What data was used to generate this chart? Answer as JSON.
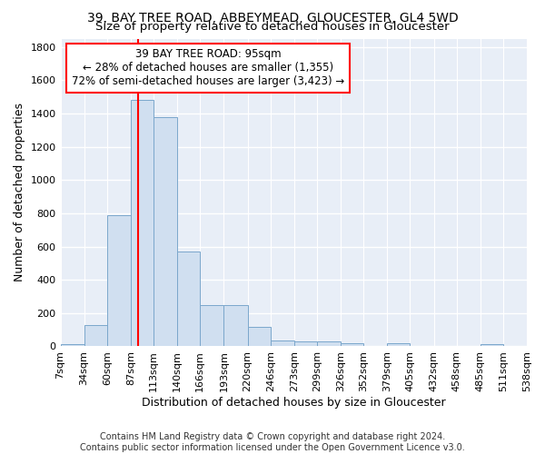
{
  "title": "39, BAY TREE ROAD, ABBEYMEAD, GLOUCESTER, GL4 5WD",
  "subtitle": "Size of property relative to detached houses in Gloucester",
  "xlabel": "Distribution of detached houses by size in Gloucester",
  "ylabel": "Number of detached properties",
  "footnote1": "Contains HM Land Registry data © Crown copyright and database right 2024.",
  "footnote2": "Contains public sector information licensed under the Open Government Licence v3.0.",
  "annotation_line1": "39 BAY TREE ROAD: 95sqm",
  "annotation_line2": "← 28% of detached houses are smaller (1,355)",
  "annotation_line3": "72% of semi-detached houses are larger (3,423) →",
  "bar_color": "#d0dff0",
  "bar_edge_color": "#7ba7cc",
  "red_line_x": 95,
  "bin_edges": [
    7,
    34,
    60,
    87,
    113,
    140,
    166,
    193,
    220,
    246,
    273,
    299,
    326,
    352,
    379,
    405,
    432,
    458,
    485,
    511,
    538
  ],
  "bar_heights": [
    15,
    130,
    790,
    1480,
    1380,
    570,
    250,
    250,
    115,
    35,
    30,
    30,
    20,
    0,
    20,
    0,
    0,
    0,
    15,
    0
  ],
  "ylim": [
    0,
    1850
  ],
  "yticks": [
    0,
    200,
    400,
    600,
    800,
    1000,
    1200,
    1400,
    1600,
    1800
  ],
  "background_color": "#e8eef7",
  "grid_color": "#ffffff",
  "title_fontsize": 10,
  "subtitle_fontsize": 9.5,
  "axis_label_fontsize": 9,
  "tick_fontsize": 8,
  "footnote_fontsize": 7
}
